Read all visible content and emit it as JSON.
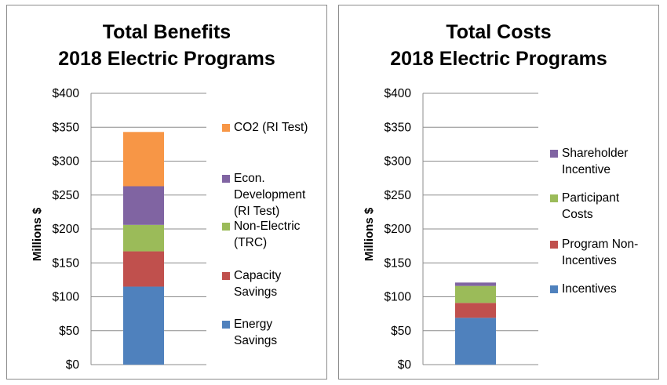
{
  "charts": [
    {
      "id": "benefits",
      "title_line1": "Total Benefits",
      "title_line2": "2018 Electric Programs",
      "ylabel": "Millions $",
      "legend": [
        {
          "label": "CO2 (RI Test)",
          "color": "#F79646"
        },
        {
          "label": "Econ. Development (RI Test)",
          "color": "#8064A2"
        },
        {
          "label": "Non-Electric (TRC)",
          "color": "#9BBB59"
        },
        {
          "label": "Capacity Savings",
          "color": "#C0504D"
        },
        {
          "label": "Energy Savings",
          "color": "#4F81BD"
        }
      ]
    },
    {
      "id": "costs",
      "title_line1": "Total Costs",
      "title_line2": "2018 Electric Programs",
      "ylabel": "Millions $",
      "legend": [
        {
          "label": "Shareholder Incentive",
          "color": "#8064A2"
        },
        {
          "label": "Participant Costs",
          "color": "#9BBB59"
        },
        {
          "label": "Program Non-Incentives",
          "color": "#C0504D"
        },
        {
          "label": "Incentives",
          "color": "#4F81BD"
        }
      ]
    }
  ],
  "chart_data": [
    {
      "type": "bar",
      "stacked": true,
      "title": "Total Benefits 2018 Electric Programs",
      "xlabel": "",
      "ylabel": "Millions $",
      "ylim": [
        0,
        400
      ],
      "yticks": [
        0,
        50,
        100,
        150,
        200,
        250,
        300,
        350,
        400
      ],
      "ytick_labels": [
        "$0",
        "$50",
        "$100",
        "$150",
        "$200",
        "$250",
        "$300",
        "$350",
        "$400"
      ],
      "grid": true,
      "legend_position": "right",
      "categories": [
        ""
      ],
      "series": [
        {
          "name": "Energy Savings",
          "values": [
            115
          ],
          "color": "#4F81BD"
        },
        {
          "name": "Capacity Savings",
          "values": [
            52
          ],
          "color": "#C0504D"
        },
        {
          "name": "Non-Electric (TRC)",
          "values": [
            39
          ],
          "color": "#9BBB59"
        },
        {
          "name": "Econ. Development (RI Test)",
          "values": [
            57
          ],
          "color": "#8064A2"
        },
        {
          "name": "CO2 (RI Test)",
          "values": [
            80
          ],
          "color": "#F79646"
        }
      ]
    },
    {
      "type": "bar",
      "stacked": true,
      "title": "Total Costs 2018 Electric Programs",
      "xlabel": "",
      "ylabel": "Millions $",
      "ylim": [
        0,
        400
      ],
      "yticks": [
        0,
        50,
        100,
        150,
        200,
        250,
        300,
        350,
        400
      ],
      "ytick_labels": [
        "$0",
        "$50",
        "$100",
        "$150",
        "$200",
        "$250",
        "$300",
        "$350",
        "$400"
      ],
      "grid": true,
      "legend_position": "right",
      "categories": [
        ""
      ],
      "series": [
        {
          "name": "Incentives",
          "values": [
            69
          ],
          "color": "#4F81BD"
        },
        {
          "name": "Program Non-Incentives",
          "values": [
            22
          ],
          "color": "#C0504D"
        },
        {
          "name": "Participant Costs",
          "values": [
            25
          ],
          "color": "#9BBB59"
        },
        {
          "name": "Shareholder Incentive",
          "values": [
            5
          ],
          "color": "#8064A2"
        }
      ]
    }
  ]
}
